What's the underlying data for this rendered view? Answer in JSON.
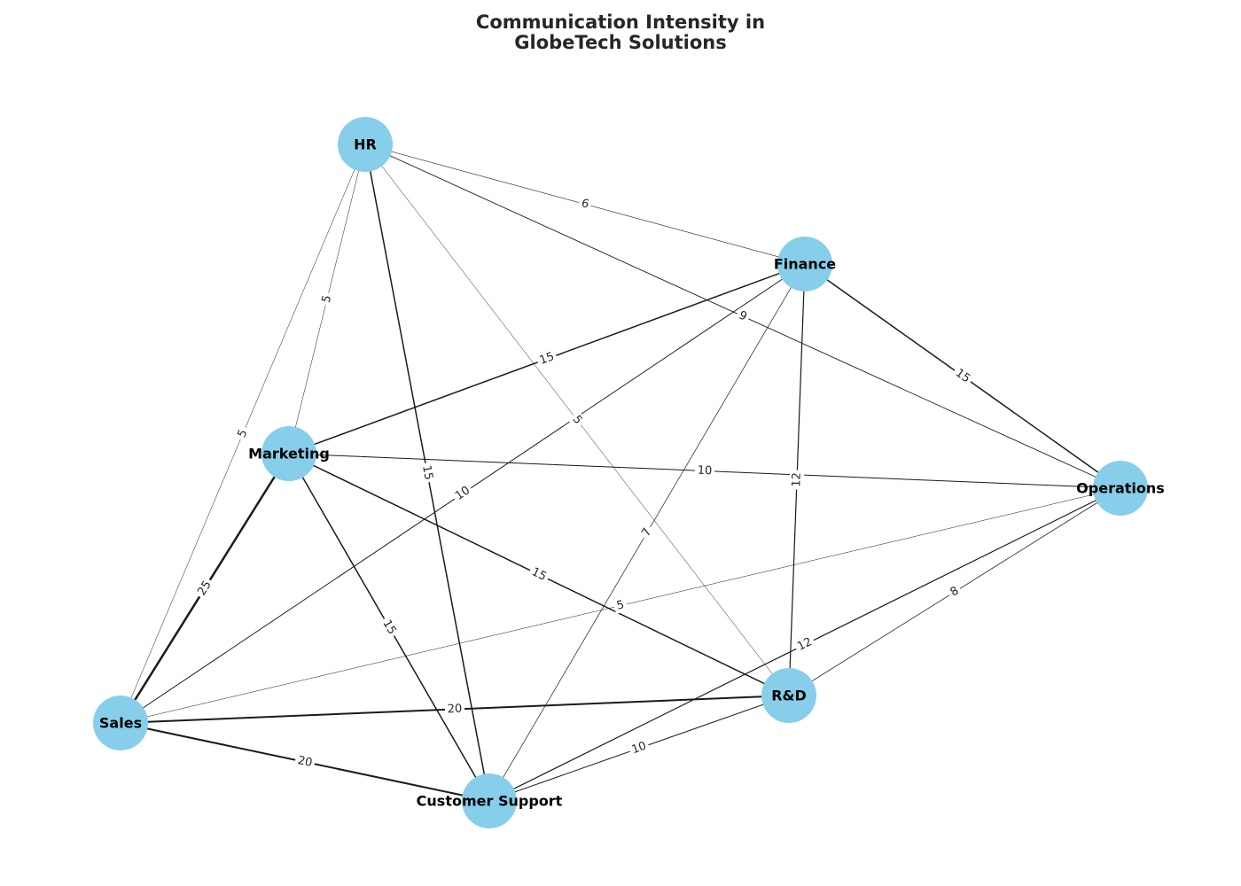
{
  "title": {
    "line1": "Communication Intensity in",
    "line2": "GlobeTech Solutions"
  },
  "colors": {
    "node": "#87ceeb",
    "edge": "#1a1a1a",
    "title": "#262626"
  },
  "nodes": [
    {
      "id": "HR",
      "label": "HR"
    },
    {
      "id": "Finance",
      "label": "Finance"
    },
    {
      "id": "Marketing",
      "label": "Marketing"
    },
    {
      "id": "Operations",
      "label": "Operations"
    },
    {
      "id": "R&D",
      "label": "R&D"
    },
    {
      "id": "Sales",
      "label": "Sales"
    },
    {
      "id": "Customer Support",
      "label": "Customer Support"
    }
  ],
  "edges": [
    {
      "source": "HR",
      "target": "Finance",
      "weight": 6
    },
    {
      "source": "HR",
      "target": "Marketing",
      "weight": 5
    },
    {
      "source": "HR",
      "target": "Sales",
      "weight": 5
    },
    {
      "source": "HR",
      "target": "R&D",
      "weight": 5
    },
    {
      "source": "HR",
      "target": "Operations",
      "weight": 9
    },
    {
      "source": "HR",
      "target": "Customer Support",
      "weight": 15
    },
    {
      "source": "Finance",
      "target": "Marketing",
      "weight": 15
    },
    {
      "source": "Finance",
      "target": "Sales",
      "weight": 10
    },
    {
      "source": "Finance",
      "target": "Customer Support",
      "weight": 7
    },
    {
      "source": "Finance",
      "target": "R&D",
      "weight": 12
    },
    {
      "source": "Finance",
      "target": "Operations",
      "weight": 15
    },
    {
      "source": "Marketing",
      "target": "Operations",
      "weight": 10
    },
    {
      "source": "Marketing",
      "target": "R&D",
      "weight": 15
    },
    {
      "source": "Marketing",
      "target": "Customer Support",
      "weight": 15
    },
    {
      "source": "Marketing",
      "target": "Sales",
      "weight": 25
    },
    {
      "source": "Operations",
      "target": "Sales",
      "weight": 5
    },
    {
      "source": "Operations",
      "target": "Customer Support",
      "weight": 12
    },
    {
      "source": "Operations",
      "target": "R&D",
      "weight": 8
    },
    {
      "source": "Sales",
      "target": "R&D",
      "weight": 20
    },
    {
      "source": "Sales",
      "target": "Customer Support",
      "weight": 20
    },
    {
      "source": "R&D",
      "target": "Customer Support",
      "weight": 10
    }
  ]
}
